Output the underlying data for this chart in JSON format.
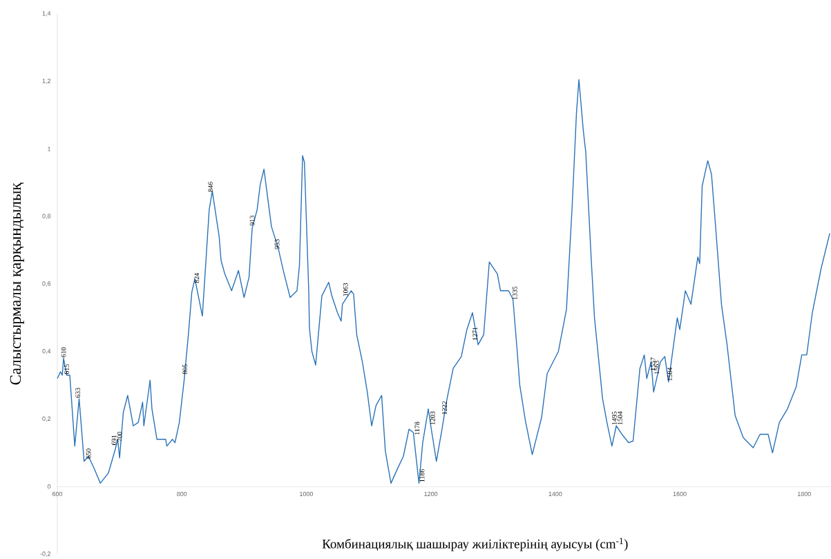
{
  "chart_data": {
    "type": "line",
    "xlabel": "Комбинациялық шашырау жиіліктерінің ауысуы (cm$^{-1}$)",
    "ylabel": "Салыстырмалы қарқындылық",
    "color": "#2a72b8",
    "line_style": "solid",
    "xlim": [
      600,
      1843
    ],
    "ylim": [
      -0.2,
      1.4
    ],
    "xticks": [
      600,
      800,
      1000,
      1200,
      1400,
      1600,
      1800
    ],
    "yticks": [
      {
        "value": -0.2,
        "label": "-0,2"
      },
      0,
      {
        "value": 0.2,
        "label": "0,2"
      },
      {
        "value": 0.4,
        "label": "0,4"
      },
      {
        "value": 0.6,
        "label": "0,6"
      },
      {
        "value": 0.8,
        "label": "0,8"
      },
      1,
      {
        "value": 1.2,
        "label": "1,2"
      },
      {
        "value": 1.4,
        "label": "1,4"
      }
    ],
    "x": [
      600,
      605,
      608,
      610,
      615,
      620,
      628,
      635,
      643,
      650,
      660,
      669,
      682,
      693,
      697,
      700,
      706,
      713,
      722,
      730,
      737,
      739,
      749,
      752,
      760,
      774,
      776,
      785,
      789,
      796,
      804,
      811,
      816,
      821,
      833,
      844,
      849,
      860,
      863,
      869,
      880,
      891,
      900,
      908,
      913,
      921,
      926,
      932,
      939,
      944,
      955,
      963,
      974,
      985,
      989,
      994,
      997,
      1004,
      1005,
      1009,
      1015,
      1025,
      1036,
      1041,
      1050,
      1056,
      1058,
      1072,
      1076,
      1081,
      1090,
      1098,
      1105,
      1112,
      1121,
      1127,
      1136,
      1147,
      1156,
      1165,
      1172,
      1181,
      1187,
      1196,
      1200,
      1209,
      1218,
      1225,
      1236,
      1249,
      1258,
      1267,
      1276,
      1285,
      1294,
      1307,
      1312,
      1325,
      1332,
      1338,
      1343,
      1352,
      1363,
      1378,
      1387,
      1405,
      1418,
      1427,
      1434,
      1438,
      1445,
      1449,
      1458,
      1463,
      1476,
      1483,
      1491,
      1498,
      1507,
      1518,
      1525,
      1536,
      1543,
      1547,
      1554,
      1558,
      1569,
      1576,
      1582,
      1596,
      1600,
      1609,
      1618,
      1629,
      1632,
      1636,
      1645,
      1651,
      1658,
      1667,
      1676,
      1689,
      1702,
      1718,
      1729,
      1742,
      1749,
      1760,
      1773,
      1787,
      1796,
      1804,
      1813,
      1827,
      1841
    ],
    "values": [
      0.32,
      0.34,
      0.33,
      0.38,
      0.33,
      0.33,
      0.12,
      0.26,
      0.075,
      0.09,
      0.05,
      0.01,
      0.04,
      0.11,
      0.14,
      0.085,
      0.22,
      0.27,
      0.18,
      0.19,
      0.25,
      0.18,
      0.315,
      0.23,
      0.14,
      0.14,
      0.12,
      0.14,
      0.13,
      0.19,
      0.32,
      0.46,
      0.575,
      0.615,
      0.505,
      0.82,
      0.875,
      0.74,
      0.67,
      0.63,
      0.58,
      0.64,
      0.56,
      0.62,
      0.765,
      0.82,
      0.895,
      0.94,
      0.84,
      0.77,
      0.705,
      0.64,
      0.56,
      0.58,
      0.655,
      0.98,
      0.96,
      0.575,
      0.47,
      0.4,
      0.36,
      0.565,
      0.605,
      0.565,
      0.515,
      0.49,
      0.54,
      0.58,
      0.57,
      0.45,
      0.37,
      0.28,
      0.18,
      0.24,
      0.27,
      0.105,
      0.01,
      0.055,
      0.09,
      0.17,
      0.16,
      0.01,
      0.13,
      0.23,
      0.18,
      0.075,
      0.17,
      0.25,
      0.35,
      0.385,
      0.465,
      0.515,
      0.42,
      0.45,
      0.665,
      0.63,
      0.58,
      0.58,
      0.555,
      0.42,
      0.3,
      0.195,
      0.095,
      0.205,
      0.335,
      0.4,
      0.525,
      0.825,
      1.105,
      1.205,
      1.055,
      0.99,
      0.665,
      0.5,
      0.26,
      0.19,
      0.12,
      0.18,
      0.155,
      0.13,
      0.135,
      0.35,
      0.39,
      0.32,
      0.37,
      0.28,
      0.37,
      0.385,
      0.31,
      0.5,
      0.465,
      0.58,
      0.54,
      0.68,
      0.66,
      0.89,
      0.965,
      0.925,
      0.76,
      0.54,
      0.42,
      0.21,
      0.145,
      0.115,
      0.155,
      0.155,
      0.1,
      0.19,
      0.23,
      0.295,
      0.39,
      0.39,
      0.515,
      0.645,
      0.75
    ],
    "annotations": [
      {
        "text": "610",
        "x": 610,
        "y": 0.38
      },
      {
        "text": "615",
        "x": 615,
        "y": 0.33
      },
      {
        "text": "633",
        "x": 633,
        "y": 0.26
      },
      {
        "text": "650",
        "x": 650,
        "y": 0.08
      },
      {
        "text": "691",
        "x": 691,
        "y": 0.12
      },
      {
        "text": "700",
        "x": 700,
        "y": 0.13
      },
      {
        "text": "805",
        "x": 805,
        "y": 0.33
      },
      {
        "text": "824",
        "x": 824,
        "y": 0.6
      },
      {
        "text": "846",
        "x": 846,
        "y": 0.87
      },
      {
        "text": "913",
        "x": 913,
        "y": 0.77
      },
      {
        "text": "953",
        "x": 953,
        "y": 0.7
      },
      {
        "text": "1063",
        "x": 1063,
        "y": 0.56
      },
      {
        "text": "1178",
        "x": 1178,
        "y": 0.15
      },
      {
        "text": "1186",
        "x": 1186,
        "y": 0.01
      },
      {
        "text": "1203",
        "x": 1203,
        "y": 0.18
      },
      {
        "text": "1222",
        "x": 1222,
        "y": 0.21
      },
      {
        "text": "1271",
        "x": 1271,
        "y": 0.43
      },
      {
        "text": "1335",
        "x": 1335,
        "y": 0.55
      },
      {
        "text": "1495",
        "x": 1495,
        "y": 0.18
      },
      {
        "text": "1504",
        "x": 1504,
        "y": 0.18
      },
      {
        "text": "1557",
        "x": 1557,
        "y": 0.34
      },
      {
        "text": "1563",
        "x": 1563,
        "y": 0.33
      },
      {
        "text": "1584",
        "x": 1584,
        "y": 0.31
      }
    ]
  }
}
